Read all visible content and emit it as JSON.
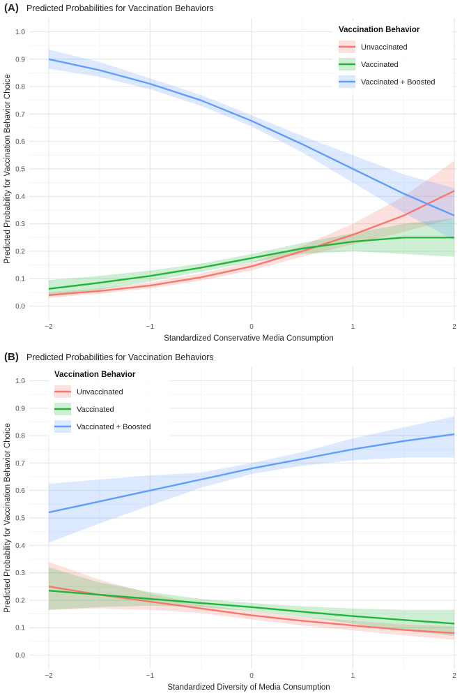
{
  "colors": {
    "unvaccinated": "#f8766d",
    "vaccinated": "#22b43a",
    "boosted": "#619cff"
  },
  "chart_data": [
    {
      "panel_label": "(A)",
      "type": "line",
      "title": "Predicted Probabilities for Vaccination Behaviors",
      "xlabel": "Standardized Conservative Media Consumption",
      "ylabel": "Predicted Probability for Vaccination Behavior Choice",
      "xlim": [
        -2,
        2
      ],
      "ylim": [
        0,
        1
      ],
      "x_ticks": [
        -2,
        -1,
        0,
        1,
        2
      ],
      "y_ticks": [
        0.0,
        0.1,
        0.2,
        0.3,
        0.4,
        0.5,
        0.6,
        0.7,
        0.8,
        0.9,
        1.0
      ],
      "grid": true,
      "legend": {
        "title": "Vaccination Behavior",
        "position": "top-right"
      },
      "x": [
        -2,
        -1.5,
        -1,
        -0.5,
        0,
        0.5,
        1,
        1.5,
        2
      ],
      "series": [
        {
          "name": "Unvaccinated",
          "color_key": "unvaccinated",
          "values": [
            0.04,
            0.055,
            0.075,
            0.105,
            0.145,
            0.2,
            0.26,
            0.33,
            0.42
          ],
          "lower": [
            0.03,
            0.045,
            0.065,
            0.093,
            0.13,
            0.18,
            0.225,
            0.27,
            0.32
          ],
          "upper": [
            0.05,
            0.065,
            0.087,
            0.12,
            0.16,
            0.22,
            0.3,
            0.4,
            0.53
          ]
        },
        {
          "name": "Vaccinated",
          "color_key": "vaccinated",
          "values": [
            0.063,
            0.085,
            0.11,
            0.14,
            0.175,
            0.21,
            0.235,
            0.25,
            0.25
          ],
          "lower": [
            0.035,
            0.06,
            0.09,
            0.125,
            0.16,
            0.19,
            0.2,
            0.19,
            0.18
          ],
          "upper": [
            0.095,
            0.11,
            0.13,
            0.155,
            0.19,
            0.23,
            0.265,
            0.3,
            0.32
          ]
        },
        {
          "name": "Vaccinated + Boosted",
          "color_key": "boosted",
          "values": [
            0.9,
            0.86,
            0.81,
            0.75,
            0.675,
            0.59,
            0.5,
            0.41,
            0.33
          ],
          "lower": [
            0.865,
            0.835,
            0.79,
            0.73,
            0.655,
            0.56,
            0.45,
            0.34,
            0.24
          ],
          "upper": [
            0.935,
            0.89,
            0.83,
            0.77,
            0.695,
            0.62,
            0.55,
            0.48,
            0.43
          ]
        }
      ]
    },
    {
      "panel_label": "(B)",
      "type": "line",
      "title": "Predicted Probabilities for Vaccination Behaviors",
      "xlabel": "Standardized Diversity of Media Consumption",
      "ylabel": "Predicted Probability for Vaccination Behavior Choice",
      "xlim": [
        -2,
        2
      ],
      "ylim": [
        0,
        1
      ],
      "x_ticks": [
        -2,
        -1,
        0,
        1,
        2
      ],
      "y_ticks": [
        0.0,
        0.1,
        0.2,
        0.3,
        0.4,
        0.5,
        0.6,
        0.7,
        0.8,
        0.9,
        1.0
      ],
      "grid": true,
      "legend": {
        "title": "Vaccination Behavior",
        "position": "top-left"
      },
      "x": [
        -2,
        -1.5,
        -1,
        -0.5,
        0,
        0.5,
        1,
        1.5,
        2
      ],
      "series": [
        {
          "name": "Unvaccinated",
          "color_key": "unvaccinated",
          "values": [
            0.25,
            0.22,
            0.195,
            0.17,
            0.145,
            0.125,
            0.108,
            0.092,
            0.08
          ],
          "lower": [
            0.165,
            0.17,
            0.165,
            0.153,
            0.13,
            0.108,
            0.09,
            0.072,
            0.055
          ],
          "upper": [
            0.34,
            0.275,
            0.225,
            0.185,
            0.16,
            0.14,
            0.125,
            0.112,
            0.105
          ]
        },
        {
          "name": "Vaccinated",
          "color_key": "vaccinated",
          "values": [
            0.235,
            0.22,
            0.205,
            0.19,
            0.175,
            0.158,
            0.142,
            0.128,
            0.115
          ],
          "lower": [
            0.165,
            0.175,
            0.18,
            0.175,
            0.16,
            0.14,
            0.115,
            0.09,
            0.07
          ],
          "upper": [
            0.32,
            0.265,
            0.23,
            0.205,
            0.19,
            0.178,
            0.17,
            0.165,
            0.165
          ]
        },
        {
          "name": "Vaccinated + Boosted",
          "color_key": "boosted",
          "values": [
            0.52,
            0.56,
            0.6,
            0.64,
            0.68,
            0.715,
            0.75,
            0.78,
            0.805
          ],
          "lower": [
            0.41,
            0.48,
            0.545,
            0.61,
            0.66,
            0.69,
            0.71,
            0.72,
            0.72
          ],
          "upper": [
            0.625,
            0.64,
            0.655,
            0.665,
            0.7,
            0.74,
            0.79,
            0.83,
            0.87
          ]
        }
      ]
    }
  ]
}
